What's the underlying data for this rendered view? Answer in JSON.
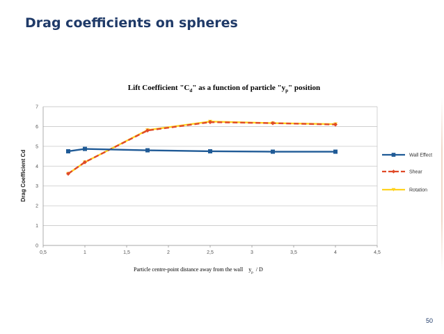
{
  "slide": {
    "title": "Drag coefficients on spheres",
    "page_number": "50"
  },
  "chart_data": {
    "type": "line",
    "title_main": "Lift Coefficient \"C",
    "title_sub1": "d",
    "title_mid": "\" as a function of particle \"y",
    "title_sub2": "p",
    "title_end": "\" position",
    "ylabel": "Drag Coefficient Cd",
    "xlabel_main": "Particle centre-point distance away from the wall",
    "xlabel_y": "y",
    "xlabel_sub": "p",
    "xlabel_end": "/ D",
    "xlim": [
      0.5,
      4.5
    ],
    "ylim": [
      0,
      7
    ],
    "x_ticks": [
      "0,5",
      "1",
      "1,5",
      "2",
      "2,5",
      "3",
      "3,5",
      "4",
      "4,5"
    ],
    "y_ticks": [
      "0",
      "1",
      "2",
      "3",
      "4",
      "5",
      "6",
      "7"
    ],
    "grid": true,
    "legend_position": "right",
    "series": [
      {
        "name": "Wall Effect",
        "color": "#1f5a96",
        "marker": "square",
        "dash": "solid",
        "x": [
          0.8,
          1.0,
          1.75,
          2.5,
          3.25,
          4.0
        ],
        "y": [
          4.75,
          4.87,
          4.8,
          4.75,
          4.73,
          4.73
        ]
      },
      {
        "name": "Shear",
        "color": "#e04a28",
        "marker": "diamond",
        "dash": "dashed",
        "x": [
          0.8,
          1.0,
          1.75,
          2.5,
          3.25,
          4.0
        ],
        "y": [
          3.62,
          4.2,
          5.8,
          6.22,
          6.17,
          6.1
        ]
      },
      {
        "name": "Rotation",
        "color": "#ffd21f",
        "marker": "triangle",
        "dash": "solid",
        "x": [
          0.8,
          1.0,
          1.75,
          2.5,
          3.25,
          4.0
        ],
        "y": [
          3.62,
          4.2,
          5.82,
          6.25,
          6.17,
          6.12
        ]
      }
    ]
  }
}
